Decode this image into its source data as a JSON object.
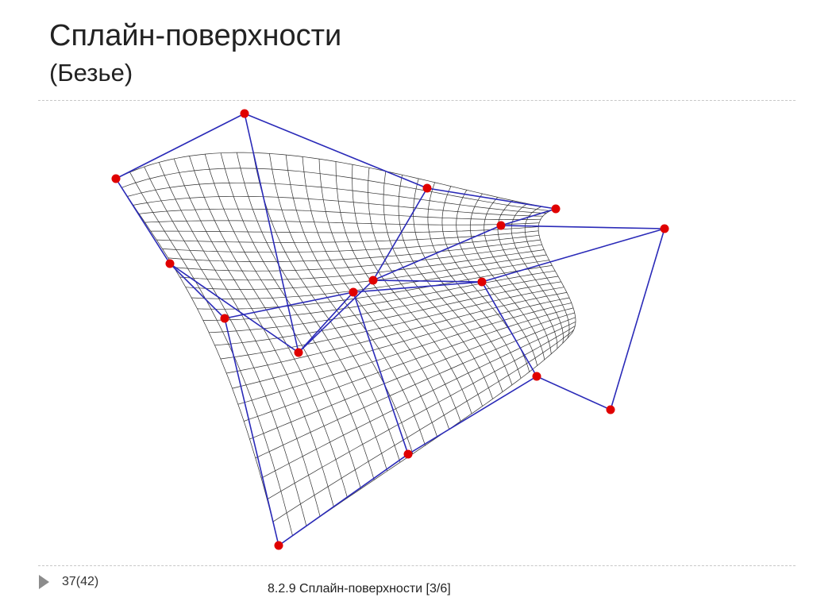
{
  "slide": {
    "title": "Сплайн-поверхности",
    "subtitle": "(Безье)",
    "page_counter": "37(42)",
    "section_label": "8.2.9 Сплайн-поверхности  [3/6]"
  },
  "colors": {
    "mesh": "#303030",
    "control_polygon": "#2a2ab8",
    "control_point": "#e00000",
    "divider": "#c8c8c8",
    "nav_arrow": "#8c8c8c"
  },
  "icons": {
    "nav": "triangle-right-icon"
  },
  "chart_data": {
    "type": "diagram",
    "description_kind": "bezier-surface-with-control-net",
    "control_grid_rows": 4,
    "control_grid_cols": 4,
    "mesh_resolution": 28
  }
}
